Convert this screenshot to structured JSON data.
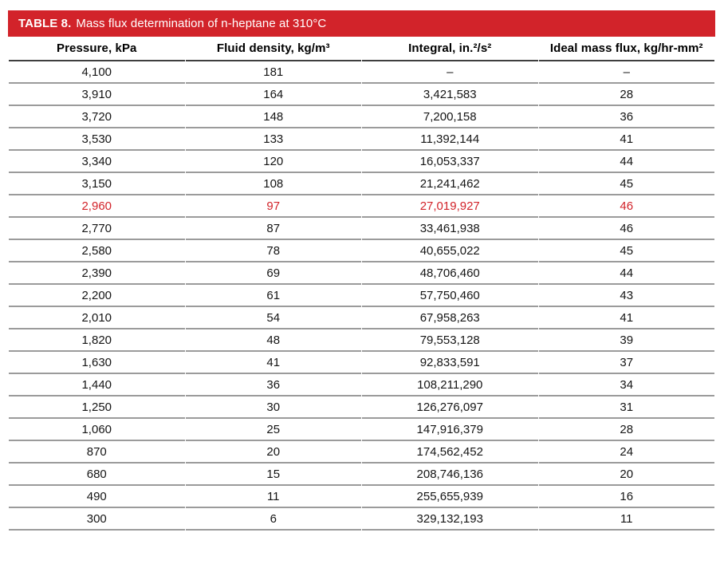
{
  "table": {
    "title_label": "TABLE 8.",
    "title_text": "Mass flux determination of n-heptane at 310°C",
    "columns": [
      "Pressure, kPa",
      "Fluid density, kg/m³",
      "Integral, in.²/s²",
      "Ideal mass flux, kg/hr-mm²"
    ],
    "rows": [
      [
        "4,100",
        "181",
        "–",
        "–"
      ],
      [
        "3,910",
        "164",
        "3,421,583",
        "28"
      ],
      [
        "3,720",
        "148",
        "7,200,158",
        "36"
      ],
      [
        "3,530",
        "133",
        "11,392,144",
        "41"
      ],
      [
        "3,340",
        "120",
        "16,053,337",
        "44"
      ],
      [
        "3,150",
        "108",
        "21,241,462",
        "45"
      ],
      [
        "2,960",
        "97",
        "27,019,927",
        "46"
      ],
      [
        "2,770",
        "87",
        "33,461,938",
        "46"
      ],
      [
        "2,580",
        "78",
        "40,655,022",
        "45"
      ],
      [
        "2,390",
        "69",
        "48,706,460",
        "44"
      ],
      [
        "2,200",
        "61",
        "57,750,460",
        "43"
      ],
      [
        "2,010",
        "54",
        "67,958,263",
        "41"
      ],
      [
        "1,820",
        "48",
        "79,553,128",
        "39"
      ],
      [
        "1,630",
        "41",
        "92,833,591",
        "37"
      ],
      [
        "1,440",
        "36",
        "108,211,290",
        "34"
      ],
      [
        "1,250",
        "30",
        "126,276,097",
        "31"
      ],
      [
        "1,060",
        "25",
        "147,916,379",
        "28"
      ],
      [
        "870",
        "20",
        "174,562,452",
        "24"
      ],
      [
        "680",
        "15",
        "208,746,136",
        "20"
      ],
      [
        "490",
        "11",
        "255,655,939",
        "16"
      ],
      [
        "300",
        "6",
        "329,132,193",
        "11"
      ]
    ],
    "highlighted_row_index": 6,
    "colors": {
      "header_bg": "#d2232a",
      "highlight_text": "#d2232a",
      "row_line": "#9b9b9b",
      "header_line": "#3f3f3f",
      "body_text": "#151515",
      "title_text_color": "#ffffff"
    }
  }
}
